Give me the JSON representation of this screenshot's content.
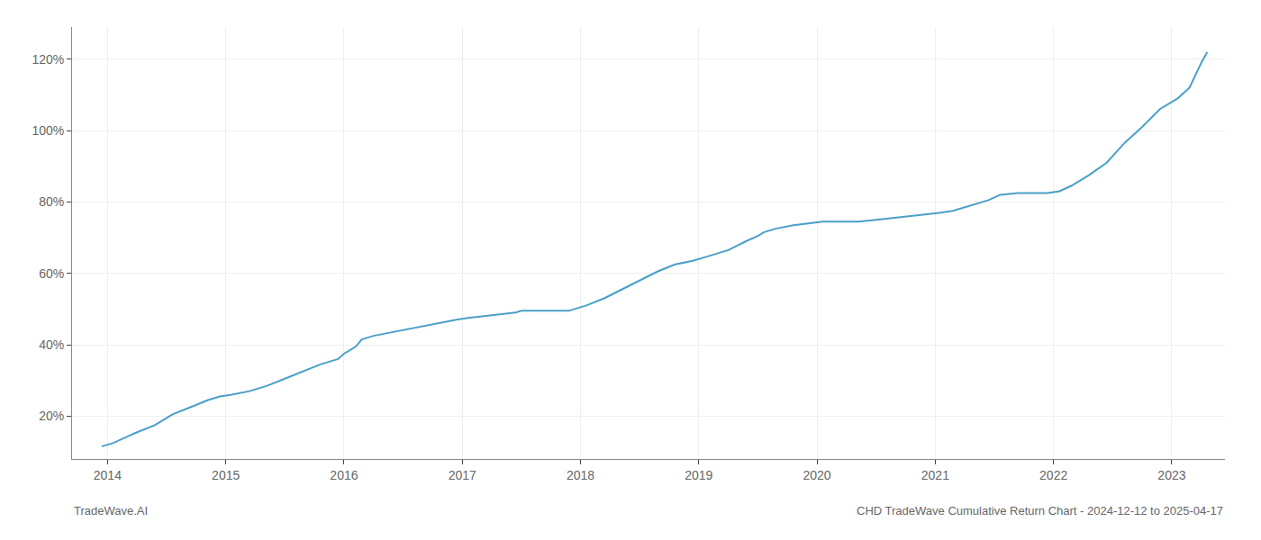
{
  "chart_data": {
    "type": "line",
    "annotations": [
      "TradeWave.AI",
      "CHD TradeWave Cumulative Return Chart - 2024-12-12 to 2025-04-17"
    ],
    "x": [
      2013.95,
      2014.05,
      2014.15,
      2014.25,
      2014.4,
      2014.55,
      2014.7,
      2014.85,
      2014.95,
      2015.05,
      2015.2,
      2015.35,
      2015.5,
      2015.65,
      2015.8,
      2015.95,
      2016.0,
      2016.1,
      2016.15,
      2016.25,
      2016.4,
      2016.55,
      2016.7,
      2016.85,
      2016.95,
      2017.05,
      2017.2,
      2017.35,
      2017.45,
      2017.5,
      2017.6,
      2017.75,
      2017.9,
      2017.95,
      2018.05,
      2018.2,
      2018.35,
      2018.5,
      2018.65,
      2018.8,
      2018.95,
      2019.05,
      2019.15,
      2019.25,
      2019.4,
      2019.5,
      2019.55,
      2019.65,
      2019.8,
      2019.95,
      2020.05,
      2020.2,
      2020.35,
      2020.5,
      2020.65,
      2020.8,
      2020.95,
      2021.05,
      2021.15,
      2021.25,
      2021.35,
      2021.45,
      2021.55,
      2021.7,
      2021.85,
      2021.95,
      2022.05,
      2022.15,
      2022.3,
      2022.45,
      2022.6,
      2022.75,
      2022.9,
      2022.95,
      2023.05,
      2023.15,
      2023.25,
      2023.3
    ],
    "values": [
      0.115,
      0.125,
      0.14,
      0.155,
      0.175,
      0.205,
      0.225,
      0.245,
      0.255,
      0.26,
      0.27,
      0.285,
      0.305,
      0.325,
      0.345,
      0.36,
      0.375,
      0.395,
      0.415,
      0.425,
      0.435,
      0.445,
      0.455,
      0.465,
      0.47,
      0.475,
      0.48,
      0.485,
      0.49,
      0.495,
      0.495,
      0.495,
      0.495,
      0.5,
      0.51,
      0.53,
      0.555,
      0.58,
      0.605,
      0.625,
      0.635,
      0.645,
      0.655,
      0.665,
      0.69,
      0.705,
      0.715,
      0.725,
      0.735,
      0.74,
      0.745,
      0.745,
      0.745,
      0.75,
      0.755,
      0.76,
      0.765,
      0.77,
      0.775,
      0.785,
      0.795,
      0.805,
      0.82,
      0.825,
      0.825,
      0.825,
      0.83,
      0.845,
      0.875,
      0.91,
      0.965,
      1.01,
      1.06,
      1.07,
      1.09,
      1.12,
      1.19,
      1.22
    ],
    "color": "#4a9fc8",
    "xlim": [
      2013.7,
      2023.45
    ],
    "ylim": [
      0.08,
      1.29
    ],
    "xticks": [
      2014,
      2015,
      2016,
      2017,
      2018,
      2019,
      2020,
      2021,
      2022,
      2023
    ],
    "yticks": [
      {
        "value": 0.2,
        "label": "20%"
      },
      {
        "value": 0.4,
        "label": "40%"
      },
      {
        "value": 0.6,
        "label": "60%"
      },
      {
        "value": 0.8,
        "label": "80%"
      },
      {
        "value": 1.0,
        "label": "100%"
      },
      {
        "value": 1.2,
        "label": "120%"
      }
    ],
    "grid": true
  }
}
